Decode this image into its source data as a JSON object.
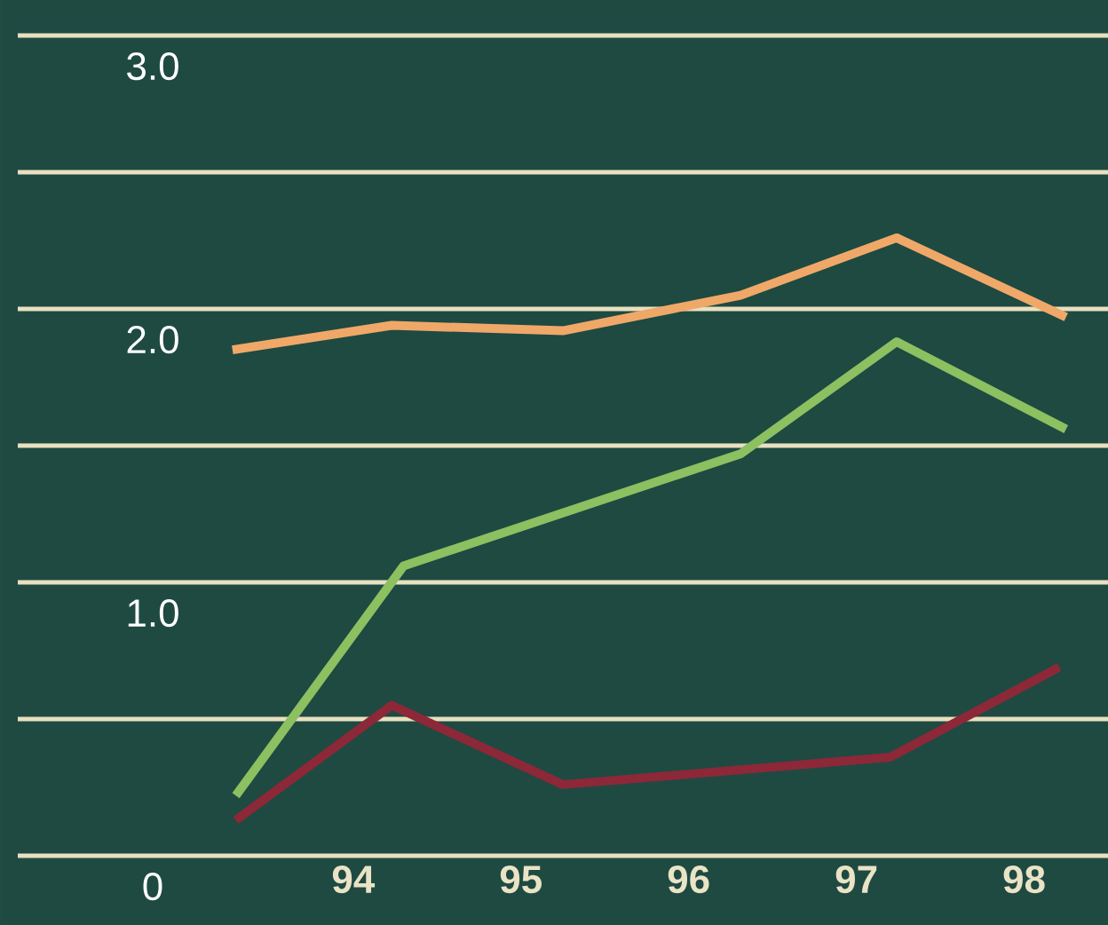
{
  "chart_data": {
    "type": "line",
    "xlim": [
      92,
      98.5
    ],
    "ylim": [
      0,
      3
    ],
    "xticks": [
      94,
      95,
      96,
      97,
      98
    ],
    "yticks": [
      0,
      {
        "value": 0.5,
        "label": null
      },
      {
        "value": 1,
        "label": "1.0"
      },
      {
        "value": 1.5,
        "label": null
      },
      {
        "value": 2,
        "label": "2.0"
      },
      {
        "value": 2.5,
        "label": null
      },
      {
        "value": 3,
        "label": "3.0"
      }
    ],
    "grid": "y",
    "series": [
      {
        "color": "#f0a868",
        "x": [
          93.28,
          94.23,
          95.25,
          96.31,
          97.24,
          98.25
        ],
        "values": [
          1.85,
          1.94,
          1.92,
          2.05,
          2.26,
          1.97
        ]
      },
      {
        "color": "#8cc060",
        "x": [
          93.3,
          94.3,
          96.31,
          97.24,
          98.25
        ],
        "values": [
          0.22,
          1.06,
          1.47,
          1.88,
          1.56
        ]
      },
      {
        "color": "#8c2838",
        "x": [
          93.3,
          94.23,
          95.25,
          97.2,
          98.21
        ],
        "values": [
          0.13,
          0.55,
          0.26,
          0.36,
          0.69
        ]
      }
    ]
  }
}
